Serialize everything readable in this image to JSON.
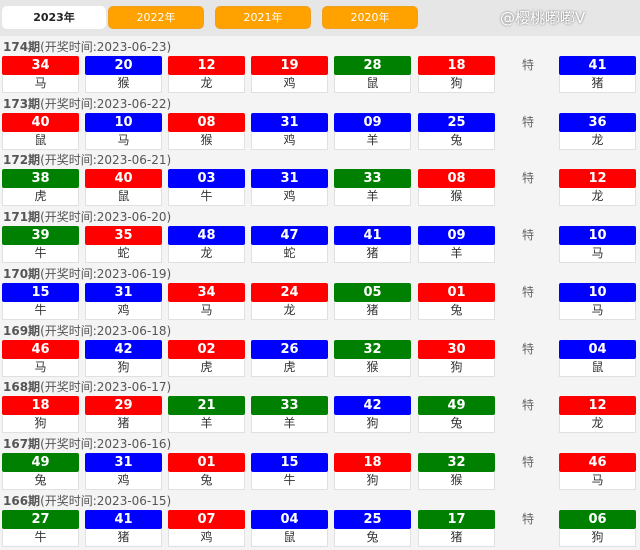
{
  "tabs": [
    {
      "label": "2023年",
      "active": true
    },
    {
      "label": "2022年"
    },
    {
      "label": "2021年"
    },
    {
      "label": "2020年"
    }
  ],
  "colors": {
    "r": "#ff0000",
    "b": "#0000ff",
    "g": "#008000"
  },
  "special_label": "特",
  "watermark": "@樱桃嘟嘟V",
  "draws": [
    {
      "period": "174期",
      "time": "(开奖时间:2023-06-23)",
      "balls": [
        [
          "34",
          "r",
          "马"
        ],
        [
          "20",
          "b",
          "猴"
        ],
        [
          "12",
          "r",
          "龙"
        ],
        [
          "19",
          "r",
          "鸡"
        ],
        [
          "28",
          "g",
          "鼠"
        ],
        [
          "18",
          "r",
          "狗"
        ]
      ],
      "special": [
        "41",
        "b",
        "猪"
      ]
    },
    {
      "period": "173期",
      "time": "(开奖时间:2023-06-22)",
      "balls": [
        [
          "40",
          "r",
          "鼠"
        ],
        [
          "10",
          "b",
          "马"
        ],
        [
          "08",
          "r",
          "猴"
        ],
        [
          "31",
          "b",
          "鸡"
        ],
        [
          "09",
          "b",
          "羊"
        ],
        [
          "25",
          "b",
          "兔"
        ]
      ],
      "special": [
        "36",
        "b",
        "龙"
      ]
    },
    {
      "period": "172期",
      "time": "(开奖时间:2023-06-21)",
      "balls": [
        [
          "38",
          "g",
          "虎"
        ],
        [
          "40",
          "r",
          "鼠"
        ],
        [
          "03",
          "b",
          "牛"
        ],
        [
          "31",
          "b",
          "鸡"
        ],
        [
          "33",
          "g",
          "羊"
        ],
        [
          "08",
          "r",
          "猴"
        ]
      ],
      "special": [
        "12",
        "r",
        "龙"
      ]
    },
    {
      "period": "171期",
      "time": "(开奖时间:2023-06-20)",
      "balls": [
        [
          "39",
          "g",
          "牛"
        ],
        [
          "35",
          "r",
          "蛇"
        ],
        [
          "48",
          "b",
          "龙"
        ],
        [
          "47",
          "b",
          "蛇"
        ],
        [
          "41",
          "b",
          "猪"
        ],
        [
          "09",
          "b",
          "羊"
        ]
      ],
      "special": [
        "10",
        "b",
        "马"
      ]
    },
    {
      "period": "170期",
      "time": "(开奖时间:2023-06-19)",
      "balls": [
        [
          "15",
          "b",
          "牛"
        ],
        [
          "31",
          "b",
          "鸡"
        ],
        [
          "34",
          "r",
          "马"
        ],
        [
          "24",
          "r",
          "龙"
        ],
        [
          "05",
          "g",
          "猪"
        ],
        [
          "01",
          "r",
          "兔"
        ]
      ],
      "special": [
        "10",
        "b",
        "马"
      ]
    },
    {
      "period": "169期",
      "time": "(开奖时间:2023-06-18)",
      "balls": [
        [
          "46",
          "r",
          "马"
        ],
        [
          "42",
          "b",
          "狗"
        ],
        [
          "02",
          "r",
          "虎"
        ],
        [
          "26",
          "b",
          "虎"
        ],
        [
          "32",
          "g",
          "猴"
        ],
        [
          "30",
          "r",
          "狗"
        ]
      ],
      "special": [
        "04",
        "b",
        "鼠"
      ]
    },
    {
      "period": "168期",
      "time": "(开奖时间:2023-06-17)",
      "balls": [
        [
          "18",
          "r",
          "狗"
        ],
        [
          "29",
          "r",
          "猪"
        ],
        [
          "21",
          "g",
          "羊"
        ],
        [
          "33",
          "g",
          "羊"
        ],
        [
          "42",
          "b",
          "狗"
        ],
        [
          "49",
          "g",
          "兔"
        ]
      ],
      "special": [
        "12",
        "r",
        "龙"
      ]
    },
    {
      "period": "167期",
      "time": "(开奖时间:2023-06-16)",
      "balls": [
        [
          "49",
          "g",
          "兔"
        ],
        [
          "31",
          "b",
          "鸡"
        ],
        [
          "01",
          "r",
          "兔"
        ],
        [
          "15",
          "b",
          "牛"
        ],
        [
          "18",
          "r",
          "狗"
        ],
        [
          "32",
          "g",
          "猴"
        ]
      ],
      "special": [
        "46",
        "r",
        "马"
      ]
    },
    {
      "period": "166期",
      "time": "(开奖时间:2023-06-15)",
      "balls": [
        [
          "27",
          "g",
          "牛"
        ],
        [
          "41",
          "b",
          "猪"
        ],
        [
          "07",
          "r",
          "鸡"
        ],
        [
          "04",
          "b",
          "鼠"
        ],
        [
          "25",
          "b",
          "兔"
        ],
        [
          "17",
          "g",
          "猪"
        ]
      ],
      "special": [
        "06",
        "g",
        "狗"
      ]
    }
  ]
}
